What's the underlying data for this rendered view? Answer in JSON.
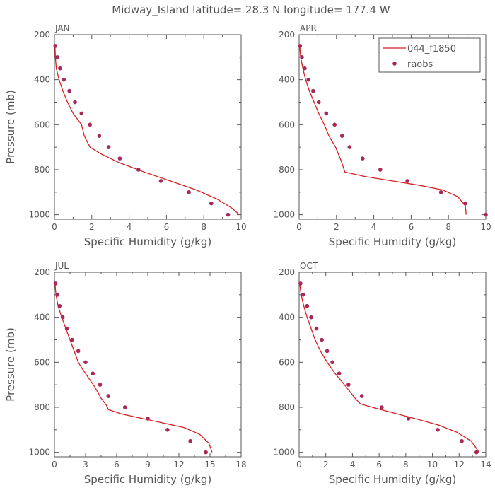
{
  "figure": {
    "title": "Midway_Island  latitude= 28.3 N longitude= 177.4 W",
    "model_color": "#d62020",
    "obs_color": "#a8285a"
  },
  "legend": {
    "model_label": "044_f1850",
    "obs_label": "raobs"
  },
  "chart_data": [
    {
      "type": "line",
      "panel": "JAN",
      "xlabel": "Specific Humidity (g/kg)",
      "ylabel": "Pressure (mb)",
      "xlim": [
        0,
        10
      ],
      "ylim": [
        1020,
        200
      ],
      "xticks": [
        "0",
        "2",
        "4",
        "6",
        "8",
        "10"
      ],
      "yticks": [
        "200",
        "400",
        "600",
        "800",
        "1000"
      ],
      "legend": false,
      "series": [
        {
          "name": "044_f1850",
          "points": [
            [
              0.03,
              250
            ],
            [
              0.05,
              300
            ],
            [
              0.1,
              350
            ],
            [
              0.25,
              400
            ],
            [
              0.45,
              450
            ],
            [
              0.7,
              500
            ],
            [
              1.0,
              550
            ],
            [
              1.45,
              600
            ],
            [
              1.6,
              650
            ],
            [
              1.9,
              700
            ],
            [
              2.5,
              730
            ],
            [
              3.5,
              770
            ],
            [
              4.8,
              810
            ],
            [
              6.2,
              850
            ],
            [
              7.6,
              890
            ],
            [
              8.7,
              930
            ],
            [
              9.5,
              970
            ],
            [
              9.9,
              1000
            ]
          ]
        },
        {
          "name": "raobs",
          "points": [
            [
              0.05,
              250
            ],
            [
              0.15,
              300
            ],
            [
              0.3,
              350
            ],
            [
              0.5,
              400
            ],
            [
              0.8,
              450
            ],
            [
              1.1,
              500
            ],
            [
              1.45,
              550
            ],
            [
              1.9,
              600
            ],
            [
              2.4,
              650
            ],
            [
              2.9,
              700
            ],
            [
              3.5,
              750
            ],
            [
              4.5,
              800
            ],
            [
              5.7,
              850
            ],
            [
              7.2,
              900
            ],
            [
              8.4,
              950
            ],
            [
              9.3,
              1000
            ]
          ]
        }
      ]
    },
    {
      "type": "line",
      "panel": "APR",
      "xlabel": "Specific Humidity (g/kg)",
      "ylabel": "",
      "xlim": [
        0,
        10
      ],
      "ylim": [
        1020,
        200
      ],
      "xticks": [
        "0",
        "2",
        "4",
        "6",
        "8",
        "10"
      ],
      "yticks": [
        "200",
        "400",
        "600",
        "800",
        "1000"
      ],
      "legend": true,
      "series": [
        {
          "name": "044_f1850",
          "points": [
            [
              0.03,
              250
            ],
            [
              0.08,
              300
            ],
            [
              0.2,
              350
            ],
            [
              0.35,
              400
            ],
            [
              0.55,
              450
            ],
            [
              0.8,
              500
            ],
            [
              1.05,
              550
            ],
            [
              1.35,
              600
            ],
            [
              1.6,
              650
            ],
            [
              1.95,
              700
            ],
            [
              2.25,
              760
            ],
            [
              2.45,
              810
            ],
            [
              3.5,
              830
            ],
            [
              5.0,
              850
            ],
            [
              6.5,
              870
            ],
            [
              7.7,
              890
            ],
            [
              8.5,
              920
            ],
            [
              8.9,
              960
            ],
            [
              8.95,
              1000
            ]
          ]
        },
        {
          "name": "raobs",
          "points": [
            [
              0.05,
              250
            ],
            [
              0.15,
              300
            ],
            [
              0.3,
              350
            ],
            [
              0.5,
              400
            ],
            [
              0.75,
              450
            ],
            [
              1.05,
              500
            ],
            [
              1.45,
              550
            ],
            [
              1.9,
              600
            ],
            [
              2.3,
              650
            ],
            [
              2.7,
              700
            ],
            [
              3.4,
              750
            ],
            [
              4.35,
              800
            ],
            [
              5.8,
              850
            ],
            [
              7.6,
              900
            ],
            [
              8.9,
              950
            ],
            [
              10.0,
              1000
            ]
          ]
        }
      ]
    },
    {
      "type": "line",
      "panel": "JUL",
      "xlabel": "Specific Humidity (g/kg)",
      "ylabel": "Pressure (mb)",
      "xlim": [
        0,
        18
      ],
      "ylim": [
        1020,
        200
      ],
      "xticks": [
        "0",
        "3",
        "6",
        "9",
        "12",
        "15",
        "18"
      ],
      "yticks": [
        "200",
        "400",
        "600",
        "800",
        "1000"
      ],
      "legend": false,
      "series": [
        {
          "name": "044_f1850",
          "points": [
            [
              0.05,
              250
            ],
            [
              0.15,
              300
            ],
            [
              0.35,
              350
            ],
            [
              0.7,
              400
            ],
            [
              1.1,
              450
            ],
            [
              1.5,
              500
            ],
            [
              1.9,
              550
            ],
            [
              2.3,
              600
            ],
            [
              2.7,
              630
            ],
            [
              3.3,
              670
            ],
            [
              3.9,
              710
            ],
            [
              4.5,
              760
            ],
            [
              5.0,
              790
            ],
            [
              5.2,
              810
            ],
            [
              6.5,
              830
            ],
            [
              8.5,
              850
            ],
            [
              10.5,
              870
            ],
            [
              12.5,
              890
            ],
            [
              14.0,
              920
            ],
            [
              14.9,
              960
            ],
            [
              15.2,
              1000
            ]
          ]
        },
        {
          "name": "raobs",
          "points": [
            [
              0.1,
              250
            ],
            [
              0.3,
              300
            ],
            [
              0.5,
              350
            ],
            [
              0.8,
              400
            ],
            [
              1.2,
              450
            ],
            [
              1.7,
              500
            ],
            [
              2.3,
              550
            ],
            [
              3.0,
              600
            ],
            [
              3.7,
              650
            ],
            [
              4.4,
              700
            ],
            [
              5.2,
              750
            ],
            [
              6.8,
              800
            ],
            [
              9.0,
              850
            ],
            [
              10.9,
              900
            ],
            [
              13.1,
              950
            ],
            [
              14.6,
              1000
            ]
          ]
        }
      ]
    },
    {
      "type": "line",
      "panel": "OCT",
      "xlabel": "Specific Humidity (g/kg)",
      "ylabel": "",
      "xlim": [
        0,
        14
      ],
      "ylim": [
        1020,
        200
      ],
      "xticks": [
        "0",
        "2",
        "4",
        "6",
        "8",
        "10",
        "12",
        "14"
      ],
      "yticks": [
        "200",
        "400",
        "600",
        "800",
        "1000"
      ],
      "legend": false,
      "series": [
        {
          "name": "044_f1850",
          "points": [
            [
              0.05,
              250
            ],
            [
              0.15,
              300
            ],
            [
              0.35,
              350
            ],
            [
              0.6,
              400
            ],
            [
              0.9,
              450
            ],
            [
              1.2,
              500
            ],
            [
              1.6,
              550
            ],
            [
              2.1,
              600
            ],
            [
              2.7,
              650
            ],
            [
              3.4,
              700
            ],
            [
              4.2,
              760
            ],
            [
              4.6,
              785
            ],
            [
              5.8,
              805
            ],
            [
              7.4,
              830
            ],
            [
              9.0,
              855
            ],
            [
              10.5,
              880
            ],
            [
              11.8,
              910
            ],
            [
              12.9,
              950
            ],
            [
              13.5,
              1000
            ]
          ]
        },
        {
          "name": "raobs",
          "points": [
            [
              0.1,
              250
            ],
            [
              0.3,
              300
            ],
            [
              0.6,
              350
            ],
            [
              0.9,
              400
            ],
            [
              1.3,
              450
            ],
            [
              1.7,
              500
            ],
            [
              2.1,
              550
            ],
            [
              2.5,
              600
            ],
            [
              3.0,
              650
            ],
            [
              3.7,
              700
            ],
            [
              4.7,
              750
            ],
            [
              6.2,
              800
            ],
            [
              8.2,
              850
            ],
            [
              10.4,
              900
            ],
            [
              12.2,
              950
            ],
            [
              13.3,
              1000
            ]
          ]
        }
      ]
    }
  ]
}
